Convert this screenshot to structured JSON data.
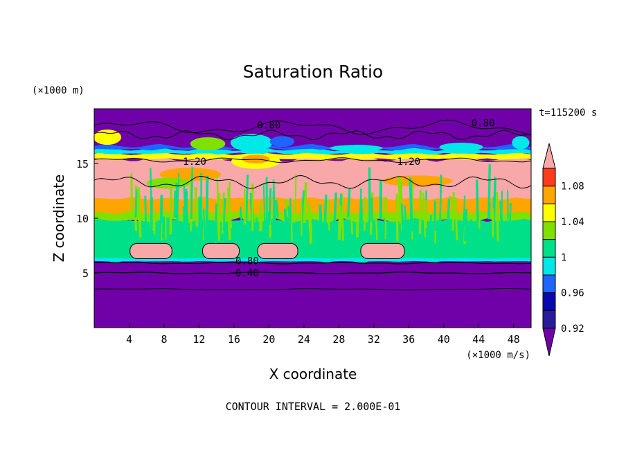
{
  "chart_data": {
    "type": "heatmap",
    "title": "Saturation Ratio",
    "xlabel": "X coordinate",
    "ylabel": "Z coordinate",
    "x_unit": "(×1000 m/s)",
    "y_unit": "(×1000 m)",
    "time_label": "t=115200 s",
    "footer": "CONTOUR INTERVAL = 2.000E-01",
    "xlim": [
      0,
      50
    ],
    "ylim": [
      0,
      20
    ],
    "x_ticks": [
      4,
      8,
      12,
      16,
      20,
      24,
      28,
      32,
      36,
      40,
      44,
      48
    ],
    "y_ticks": [
      5,
      10,
      15
    ],
    "colorbar": {
      "labels": [
        "1.08",
        "1.04",
        "1",
        "0.96",
        "0.92"
      ],
      "levels": [
        {
          "max": 0.92,
          "color": "#7000a8"
        },
        {
          "max": 0.94,
          "color": "#2a1a9c"
        },
        {
          "max": 0.96,
          "color": "#0808b0"
        },
        {
          "max": 0.98,
          "color": "#1e64ff"
        },
        {
          "max": 1.0,
          "color": "#00e8e8"
        },
        {
          "max": 1.02,
          "color": "#00e088"
        },
        {
          "max": 1.04,
          "color": "#80e000"
        },
        {
          "max": 1.06,
          "color": "#ffff00"
        },
        {
          "max": 1.08,
          "color": "#ffa500"
        },
        {
          "max": 1.1,
          "color": "#ff3c1a"
        },
        {
          "max": 9.99,
          "color": "#f8a8a8"
        }
      ]
    },
    "contour_labels": [
      {
        "text": "0.80",
        "x": 20,
        "z": 18.5
      },
      {
        "text": "0.80",
        "x": 44.5,
        "z": 18.7
      },
      {
        "text": "1.20",
        "x": 11.5,
        "z": 15.2
      },
      {
        "text": "1.20",
        "x": 36,
        "z": 15.2
      },
      {
        "text": "0.80",
        "x": 17.5,
        "z": 6.1
      },
      {
        "text": "0.40",
        "x": 17.5,
        "z": 5.0
      }
    ]
  }
}
